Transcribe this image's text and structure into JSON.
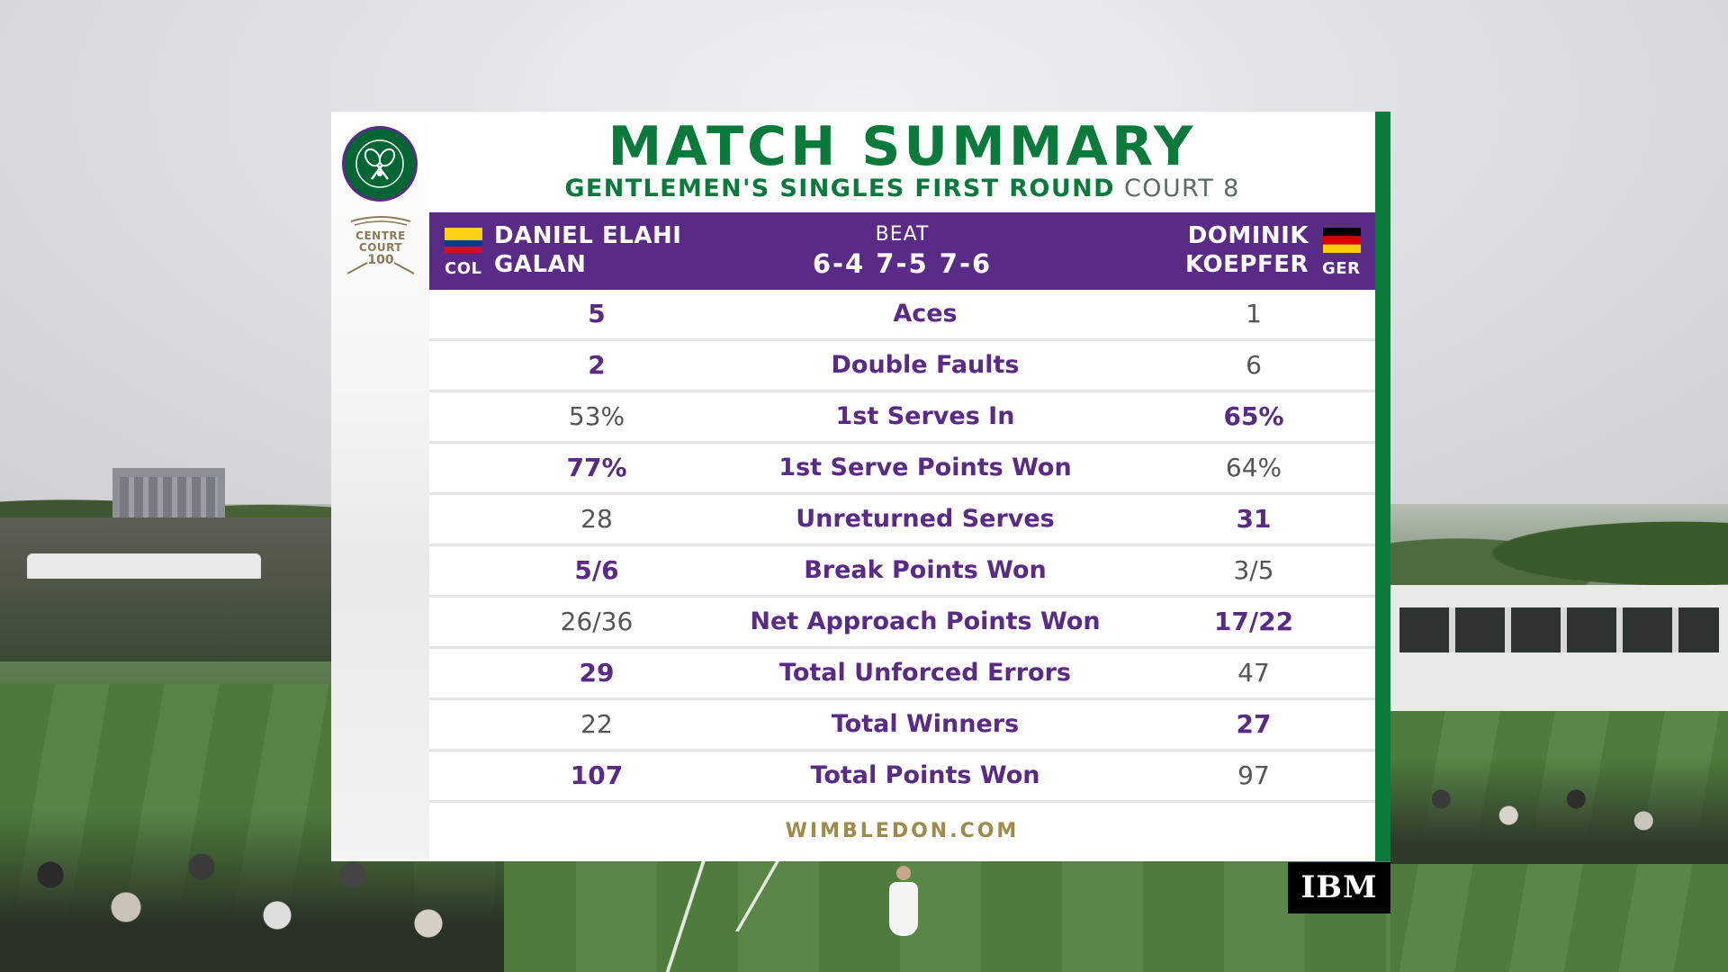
{
  "branding": {
    "logo_icon": "wimbledon-crossed-rackets-logo",
    "centre_court": [
      "CENTRE",
      "COURT",
      "100"
    ],
    "footer_url": "WIMBLEDON.COM",
    "sponsor": "IBM"
  },
  "header": {
    "title": "MATCH SUMMARY",
    "round": "GENTLEMEN'S SINGLES FIRST ROUND",
    "court": "COURT 8"
  },
  "match": {
    "winner": {
      "name_line1": "DANIEL ELAHI",
      "name_line2": "GALAN",
      "country": "COL",
      "flag_icon": "colombia-flag"
    },
    "result_word": "BEAT",
    "score": "6-4 7-5 7-6",
    "loser": {
      "name_line1": "DOMINIK",
      "name_line2": "KOEPFER",
      "country": "GER",
      "flag_icon": "germany-flag"
    }
  },
  "stats": [
    {
      "label": "Aces",
      "p1": "5",
      "p2": "1",
      "leader": "p1"
    },
    {
      "label": "Double Faults",
      "p1": "2",
      "p2": "6",
      "leader": "p1"
    },
    {
      "label": "1st Serves In",
      "p1": "53%",
      "p2": "65%",
      "leader": "p2"
    },
    {
      "label": "1st Serve Points Won",
      "p1": "77%",
      "p2": "64%",
      "leader": "p1"
    },
    {
      "label": "Unreturned Serves",
      "p1": "28",
      "p2": "31",
      "leader": "p2"
    },
    {
      "label": "Break Points Won",
      "p1": "5/6",
      "p2": "3/5",
      "leader": "p1"
    },
    {
      "label": "Net Approach Points Won",
      "p1": "26/36",
      "p2": "17/22",
      "leader": "p2"
    },
    {
      "label": "Total Unforced Errors",
      "p1": "29",
      "p2": "47",
      "leader": "p1"
    },
    {
      "label": "Total Winners",
      "p1": "22",
      "p2": "27",
      "leader": "p2"
    },
    {
      "label": "Total Points Won",
      "p1": "107",
      "p2": "97",
      "leader": "p1"
    }
  ],
  "colors": {
    "purple": "#5a2b86",
    "green": "#0a7a3c",
    "gold": "#a08a4a"
  }
}
